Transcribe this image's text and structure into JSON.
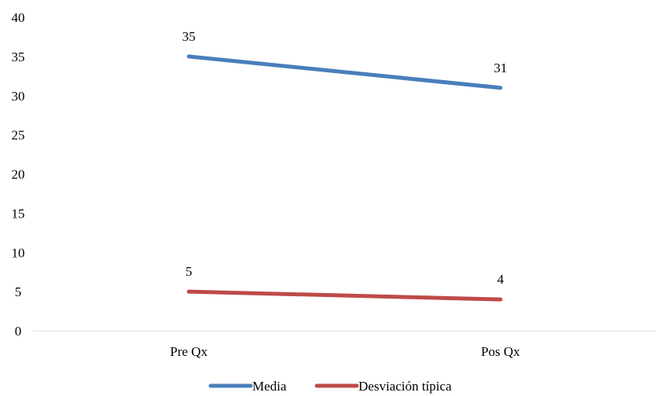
{
  "chart_data": {
    "type": "line",
    "categories": [
      "Pre Qx",
      "Pos Qx"
    ],
    "series": [
      {
        "name": "Media",
        "values": [
          35,
          31
        ],
        "color": "#4a7ebb"
      },
      {
        "name": "Desviación típica",
        "values": [
          5,
          4
        ],
        "color": "#be4b48"
      }
    ],
    "ylim": [
      0,
      40
    ],
    "yticks": [
      "0",
      "5",
      "10",
      "15",
      "20",
      "25",
      "30",
      "35",
      "40"
    ],
    "data_labels": [
      [
        "35",
        "31"
      ],
      [
        "5",
        "4"
      ]
    ],
    "grid": false,
    "legend_position": "bottom"
  }
}
